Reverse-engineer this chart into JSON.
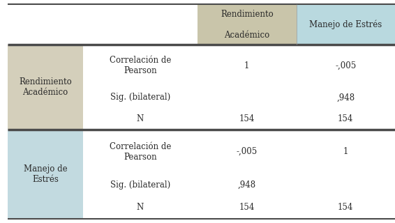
{
  "header_col2_text": "Rendimiento\n\nAcadémico",
  "header_col3_text": "Manejo de Estrés",
  "row1_label": "Rendimiento\nAcadémico",
  "row2_label": "Manejo de\nEstrés",
  "sub_label_pearson": "Correlación de\nPearson",
  "sub_label_sig": "Sig. (bilateral)",
  "sub_label_n": "N",
  "r1c2_pearson": "1",
  "r1c3_pearson": "-,005",
  "r1c2_sig": "",
  "r1c3_sig": ",948",
  "r1c2_n": "154",
  "r1c3_n": "154",
  "r2c2_pearson": "-,005",
  "r2c3_pearson": "1",
  "r2c2_sig": ",948",
  "r2c3_sig": "",
  "r2c2_n": "154",
  "r2c3_n": "154",
  "header_bg_col2": "#c9c5aa",
  "header_bg_col3": "#b9d9df",
  "row1_label_bg": "#d4cfbb",
  "row2_label_bg": "#c2dae0",
  "border_dark": "#4a4a4a",
  "text_color": "#2a2a2a",
  "bg_color": "#ffffff",
  "font_size": 8.5,
  "figwidth": 5.66,
  "figheight": 3.2,
  "dpi": 100
}
